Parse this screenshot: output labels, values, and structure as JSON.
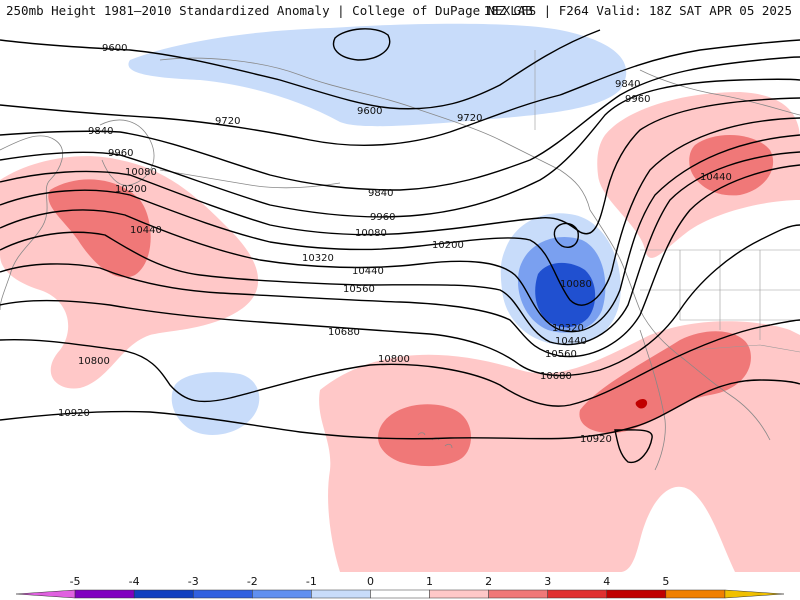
{
  "header": {
    "left_title": "250mb Height 1981–2010 Standardized Anomaly | College of DuPage NEXLAB",
    "right_title": "18Z GFS | F264 Valid: 18Z SAT APR 05 2025"
  },
  "map": {
    "contour_labels": [
      "9600",
      "9600",
      "9720",
      "9720",
      "9840",
      "9840",
      "9840",
      "9960",
      "9960",
      "9960",
      "10080",
      "10080",
      "10080",
      "10200",
      "10200",
      "10320",
      "10320",
      "10440",
      "10440",
      "10440",
      "10440",
      "10560",
      "10560",
      "10680",
      "10680",
      "10800",
      "10800",
      "10920",
      "10920"
    ]
  },
  "colorbar": {
    "ticks": [
      "-5",
      "-4",
      "-3",
      "-2",
      "-1",
      "0",
      "1",
      "2",
      "3",
      "4",
      "5"
    ],
    "colors": [
      "#e060e0",
      "#8000c0",
      "#1040c0",
      "#3060e0",
      "#6090f0",
      "#c8dcfa",
      "#ffffff",
      "#ffc8c8",
      "#f07878",
      "#e03030",
      "#c00000",
      "#f08000",
      "#f0c000"
    ]
  }
}
